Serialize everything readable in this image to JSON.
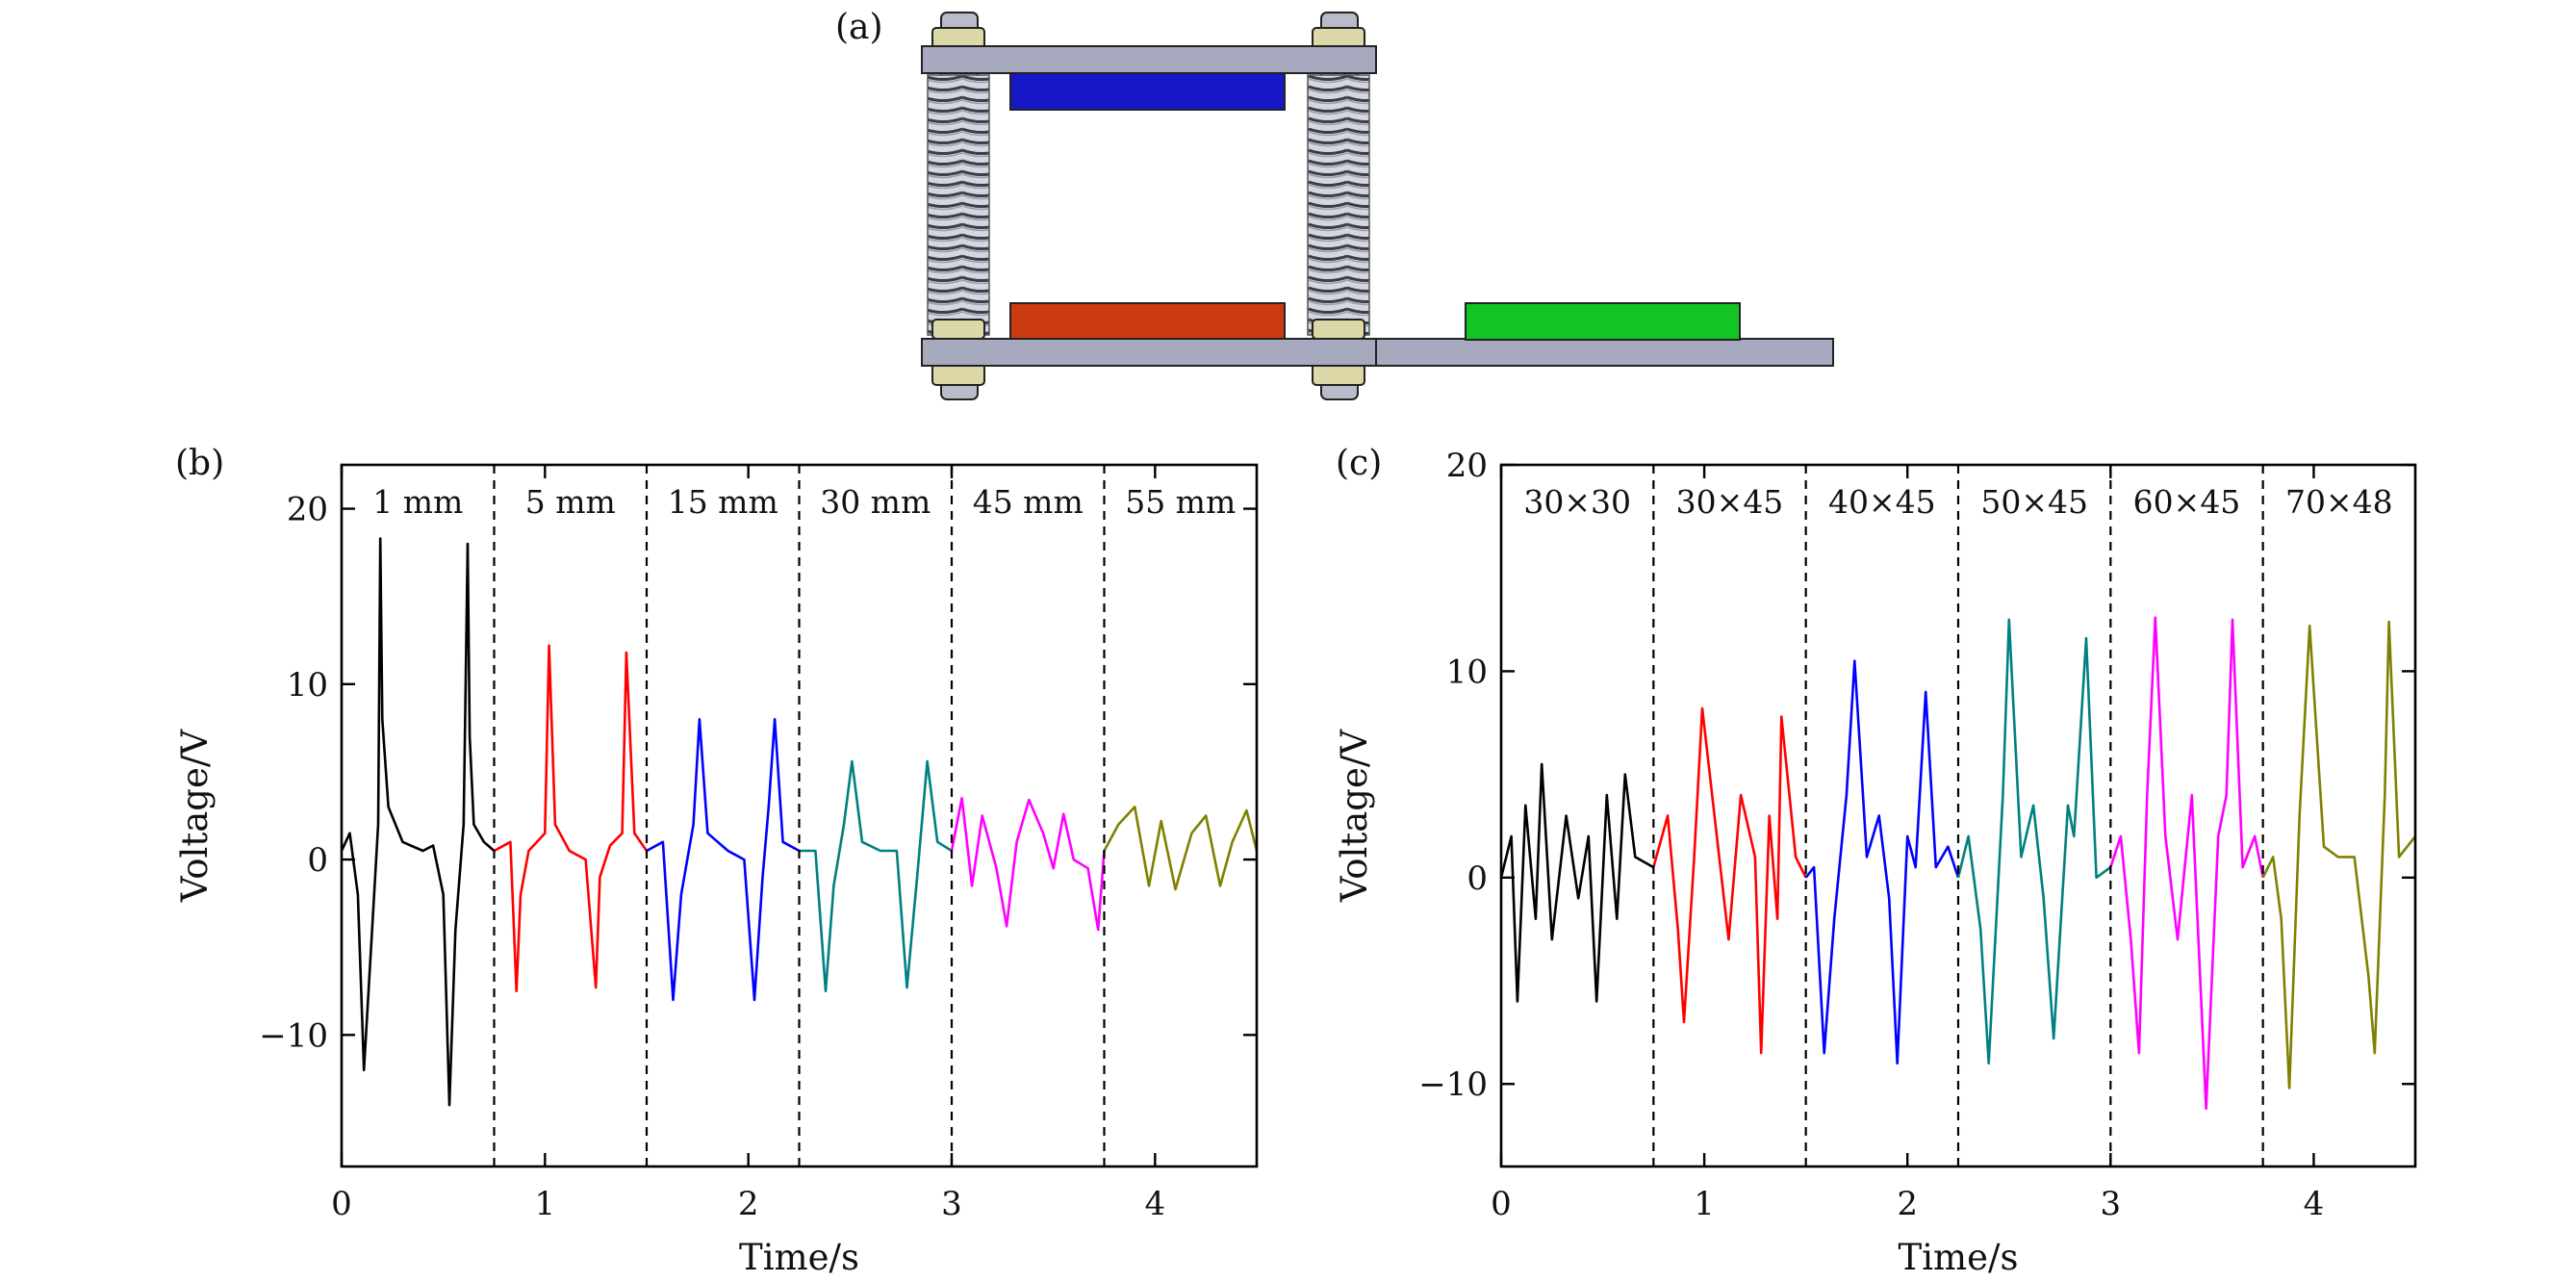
{
  "panels": {
    "a": {
      "label": "(a)"
    },
    "b": {
      "label": "(b)"
    },
    "c": {
      "label": "(c)"
    }
  },
  "device_colors": {
    "plate": "#A7AABF",
    "top_pad": "#1717C8",
    "bottom_pad": "#CC3A12",
    "side_pad": "#12C424",
    "screw": "#B9BCC8",
    "nut": "#DCD8A8"
  },
  "chart_data": [
    {
      "id": "b",
      "type": "line",
      "xlabel": "Time/s",
      "ylabel": "Voltage/V",
      "xlim": [
        0,
        4.5
      ],
      "ylim": [
        -17.5,
        22.5
      ],
      "xticks": [
        0,
        1,
        2,
        3,
        4
      ],
      "yticks": [
        -10,
        0,
        10,
        20
      ],
      "ytick_labels": [
        "−10",
        "0",
        "10",
        "20"
      ],
      "boundaries": [
        0.75,
        1.5,
        2.25,
        3.0,
        3.75
      ],
      "segment_labels": [
        "1 mm",
        "5 mm",
        "15 mm",
        "30 mm",
        "45 mm",
        "55 mm"
      ],
      "series": [
        {
          "color": "#000000",
          "x": [
            0.0,
            0.04,
            0.08,
            0.11,
            0.15,
            0.18,
            0.19,
            0.2,
            0.23,
            0.3,
            0.4,
            0.45,
            0.5,
            0.53,
            0.56,
            0.6,
            0.62,
            0.63,
            0.65,
            0.7,
            0.75
          ],
          "y": [
            0.5,
            1.5,
            -2.0,
            -12.0,
            -4.0,
            2.0,
            18.3,
            8.0,
            3.0,
            1.0,
            0.5,
            0.8,
            -2.0,
            -14.0,
            -4.0,
            2.0,
            18.0,
            7.0,
            2.0,
            1.0,
            0.5
          ]
        },
        {
          "color": "#FF0000",
          "x": [
            0.75,
            0.83,
            0.86,
            0.88,
            0.92,
            1.0,
            1.02,
            1.05,
            1.12,
            1.2,
            1.25,
            1.27,
            1.32,
            1.38,
            1.4,
            1.44,
            1.5
          ],
          "y": [
            0.5,
            1.0,
            -7.5,
            -2.0,
            0.5,
            1.5,
            12.2,
            2.0,
            0.5,
            0.0,
            -7.3,
            -1.0,
            0.8,
            1.5,
            11.8,
            1.5,
            0.5
          ]
        },
        {
          "color": "#0000FF",
          "x": [
            1.5,
            1.58,
            1.63,
            1.67,
            1.73,
            1.76,
            1.8,
            1.9,
            1.98,
            2.03,
            2.07,
            2.1,
            2.13,
            2.17,
            2.25
          ],
          "y": [
            0.5,
            1.0,
            -8.0,
            -2.0,
            2.0,
            8.0,
            1.5,
            0.5,
            0.0,
            -8.0,
            -1.0,
            3.0,
            8.0,
            1.0,
            0.5
          ]
        },
        {
          "color": "#008080",
          "x": [
            2.25,
            2.33,
            2.38,
            2.42,
            2.47,
            2.51,
            2.56,
            2.65,
            2.73,
            2.78,
            2.83,
            2.88,
            2.93,
            3.0
          ],
          "y": [
            0.5,
            0.5,
            -7.5,
            -1.5,
            2.0,
            5.6,
            1.0,
            0.5,
            0.5,
            -7.3,
            -1.0,
            5.6,
            1.0,
            0.5
          ]
        },
        {
          "color": "#FF00FF",
          "x": [
            3.0,
            3.05,
            3.1,
            3.15,
            3.22,
            3.27,
            3.32,
            3.38,
            3.45,
            3.5,
            3.55,
            3.6,
            3.67,
            3.72,
            3.75
          ],
          "y": [
            0.5,
            3.5,
            -1.5,
            2.5,
            -0.5,
            -3.8,
            1.0,
            3.4,
            1.5,
            -0.5,
            2.6,
            0.0,
            -0.5,
            -4.0,
            0.5
          ]
        },
        {
          "color": "#808000",
          "x": [
            3.75,
            3.82,
            3.9,
            3.97,
            4.03,
            4.1,
            4.18,
            4.25,
            4.32,
            4.38,
            4.45,
            4.5
          ],
          "y": [
            0.5,
            2.0,
            3.0,
            -1.5,
            2.2,
            -1.7,
            1.5,
            2.5,
            -1.5,
            1.0,
            2.8,
            0.5
          ]
        }
      ]
    },
    {
      "id": "c",
      "type": "line",
      "xlabel": "Time/s",
      "ylabel": "Voltage/V",
      "xlim": [
        0,
        4.5
      ],
      "ylim": [
        -14,
        20
      ],
      "xticks": [
        0,
        1,
        2,
        3,
        4
      ],
      "yticks": [
        -10,
        0,
        10,
        20
      ],
      "ytick_labels": [
        "−10",
        "0",
        "10",
        "20"
      ],
      "boundaries": [
        0.75,
        1.5,
        2.25,
        3.0,
        3.75
      ],
      "segment_labels": [
        "30×30",
        "30×45",
        "40×45",
        "50×45",
        "60×45",
        "70×48"
      ],
      "series": [
        {
          "color": "#000000",
          "x": [
            0.0,
            0.05,
            0.08,
            0.12,
            0.17,
            0.2,
            0.25,
            0.32,
            0.38,
            0.43,
            0.47,
            0.52,
            0.57,
            0.61,
            0.66,
            0.75
          ],
          "y": [
            0.0,
            2.0,
            -6.0,
            3.5,
            -2.0,
            5.5,
            -3.0,
            3.0,
            -1.0,
            2.0,
            -6.0,
            4.0,
            -2.0,
            5.0,
            1.0,
            0.5
          ]
        },
        {
          "color": "#FF0000",
          "x": [
            0.75,
            0.82,
            0.87,
            0.9,
            0.95,
            0.99,
            1.05,
            1.12,
            1.18,
            1.25,
            1.28,
            1.32,
            1.36,
            1.38,
            1.45,
            1.5
          ],
          "y": [
            0.5,
            3.0,
            -2.5,
            -7.0,
            1.0,
            8.2,
            3.0,
            -3.0,
            4.0,
            1.0,
            -8.5,
            3.0,
            -2.0,
            7.8,
            1.0,
            0.0
          ]
        },
        {
          "color": "#0000FF",
          "x": [
            1.5,
            1.54,
            1.59,
            1.64,
            1.7,
            1.74,
            1.8,
            1.86,
            1.91,
            1.95,
            2.0,
            2.04,
            2.09,
            2.14,
            2.2,
            2.25
          ],
          "y": [
            0.0,
            0.5,
            -8.5,
            -2.0,
            4.0,
            10.5,
            1.0,
            3.0,
            -1.0,
            -9.0,
            2.0,
            0.5,
            9.0,
            0.5,
            1.5,
            0.0
          ]
        },
        {
          "color": "#008080",
          "x": [
            2.25,
            2.3,
            2.36,
            2.4,
            2.47,
            2.5,
            2.56,
            2.62,
            2.67,
            2.72,
            2.79,
            2.82,
            2.88,
            2.93,
            3.0
          ],
          "y": [
            0.0,
            2.0,
            -2.5,
            -9.0,
            4.0,
            12.5,
            1.0,
            3.5,
            -1.0,
            -7.8,
            3.5,
            2.0,
            11.6,
            0.0,
            0.5
          ]
        },
        {
          "color": "#FF00FF",
          "x": [
            3.0,
            3.05,
            3.1,
            3.14,
            3.18,
            3.22,
            3.27,
            3.33,
            3.4,
            3.47,
            3.53,
            3.57,
            3.6,
            3.65,
            3.71,
            3.75
          ],
          "y": [
            0.5,
            2.0,
            -3.0,
            -8.5,
            4.0,
            12.6,
            2.0,
            -3.0,
            4.0,
            -11.2,
            2.0,
            4.0,
            12.5,
            0.5,
            2.0,
            0.0
          ]
        },
        {
          "color": "#808000",
          "x": [
            3.75,
            3.8,
            3.84,
            3.88,
            3.93,
            3.98,
            4.05,
            4.12,
            4.2,
            4.27,
            4.3,
            4.35,
            4.37,
            4.42,
            4.5
          ],
          "y": [
            0.0,
            1.0,
            -2.0,
            -10.2,
            3.0,
            12.2,
            1.5,
            1.0,
            1.0,
            -4.8,
            -8.5,
            4.0,
            12.4,
            1.0,
            2.0
          ]
        }
      ]
    }
  ]
}
